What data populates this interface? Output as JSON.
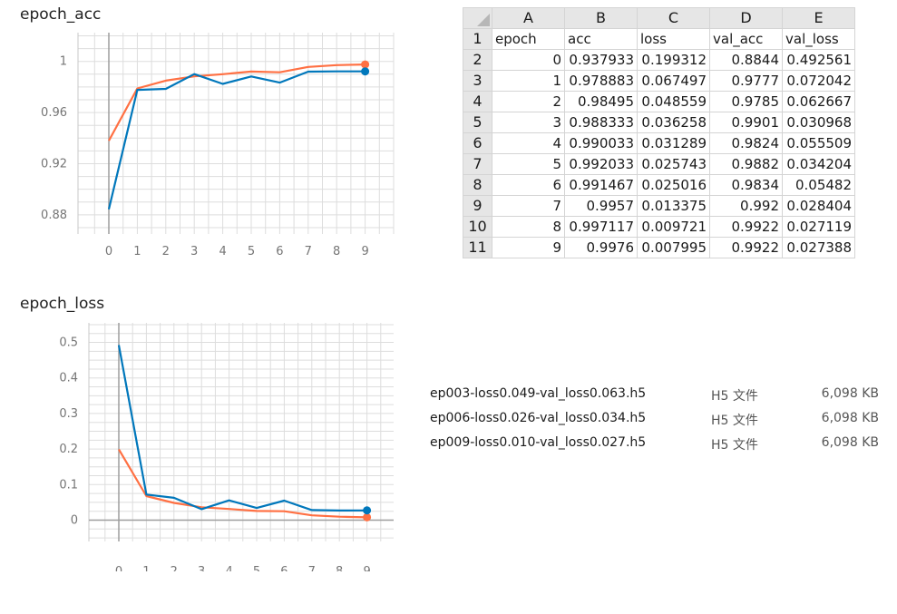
{
  "chart_data": [
    {
      "type": "line",
      "title": "epoch_acc",
      "x": [
        0,
        1,
        2,
        3,
        4,
        5,
        6,
        7,
        8,
        9
      ],
      "ylim": [
        0.865,
        1.0225
      ],
      "yticks": [
        0.88,
        0.92,
        0.96,
        1
      ],
      "ytick_labels": [
        "0.88",
        "0.92",
        "0.96",
        "1"
      ],
      "xticks": [
        0,
        1,
        2,
        3,
        4,
        5,
        6,
        7,
        8,
        9
      ],
      "grid": true,
      "series": [
        {
          "color": "#ff7043",
          "values": [
            0.937933,
            0.978883,
            0.98495,
            0.988333,
            0.990033,
            0.992033,
            0.991467,
            0.9957,
            0.997117,
            0.9976
          ]
        },
        {
          "color": "#0077bb",
          "values": [
            0.8844,
            0.9777,
            0.9785,
            0.9901,
            0.9824,
            0.9882,
            0.9834,
            0.992,
            0.9922,
            0.9922
          ]
        }
      ]
    },
    {
      "type": "line",
      "title": "epoch_loss",
      "x": [
        0,
        1,
        2,
        3,
        4,
        5,
        6,
        7,
        8,
        9
      ],
      "ylim": [
        -0.06,
        0.555
      ],
      "yticks": [
        0,
        0.1,
        0.2,
        0.3,
        0.4,
        0.5
      ],
      "ytick_labels": [
        "0",
        "0.1",
        "0.2",
        "0.3",
        "0.4",
        "0.5"
      ],
      "xticks": [
        0,
        1,
        2,
        3,
        4,
        5,
        6,
        7,
        8,
        9
      ],
      "grid": true,
      "series": [
        {
          "color": "#ff7043",
          "values": [
            0.199312,
            0.067497,
            0.048559,
            0.036258,
            0.031289,
            0.025743,
            0.025016,
            0.013375,
            0.009721,
            0.007995
          ]
        },
        {
          "color": "#0077bb",
          "values": [
            0.492561,
            0.072042,
            0.062667,
            0.030968,
            0.055509,
            0.034204,
            0.05482,
            0.028404,
            0.027119,
            0.027388
          ]
        }
      ]
    }
  ],
  "spreadsheet": {
    "col_letters": [
      "A",
      "B",
      "C",
      "D",
      "E"
    ],
    "rows": [
      {
        "n": "1",
        "cells": [
          "epoch",
          "acc",
          "loss",
          "val_acc",
          "val_loss"
        ]
      },
      {
        "n": "2",
        "cells": [
          "0",
          "0.937933",
          "0.199312",
          "0.8844",
          "0.492561"
        ]
      },
      {
        "n": "3",
        "cells": [
          "1",
          "0.978883",
          "0.067497",
          "0.9777",
          "0.072042"
        ]
      },
      {
        "n": "4",
        "cells": [
          "2",
          "0.98495",
          "0.048559",
          "0.9785",
          "0.062667"
        ]
      },
      {
        "n": "5",
        "cells": [
          "3",
          "0.988333",
          "0.036258",
          "0.9901",
          "0.030968"
        ]
      },
      {
        "n": "6",
        "cells": [
          "4",
          "0.990033",
          "0.031289",
          "0.9824",
          "0.055509"
        ]
      },
      {
        "n": "7",
        "cells": [
          "5",
          "0.992033",
          "0.025743",
          "0.9882",
          "0.034204"
        ]
      },
      {
        "n": "8",
        "cells": [
          "6",
          "0.991467",
          "0.025016",
          "0.9834",
          "0.05482"
        ]
      },
      {
        "n": "9",
        "cells": [
          "7",
          "0.9957",
          "0.013375",
          "0.992",
          "0.028404"
        ]
      },
      {
        "n": "10",
        "cells": [
          "8",
          "0.997117",
          "0.009721",
          "0.9922",
          "0.027119"
        ]
      },
      {
        "n": "11",
        "cells": [
          "9",
          "0.9976",
          "0.007995",
          "0.9922",
          "0.027388"
        ]
      }
    ]
  },
  "files": [
    {
      "name": "ep003-loss0.049-val_loss0.063.h5",
      "type": "H5 文件",
      "size": "6,098 KB"
    },
    {
      "name": "ep006-loss0.026-val_loss0.034.h5",
      "type": "H5 文件",
      "size": "6,098 KB"
    },
    {
      "name": "ep009-loss0.010-val_loss0.027.h5",
      "type": "H5 文件",
      "size": "6,098 KB"
    }
  ]
}
